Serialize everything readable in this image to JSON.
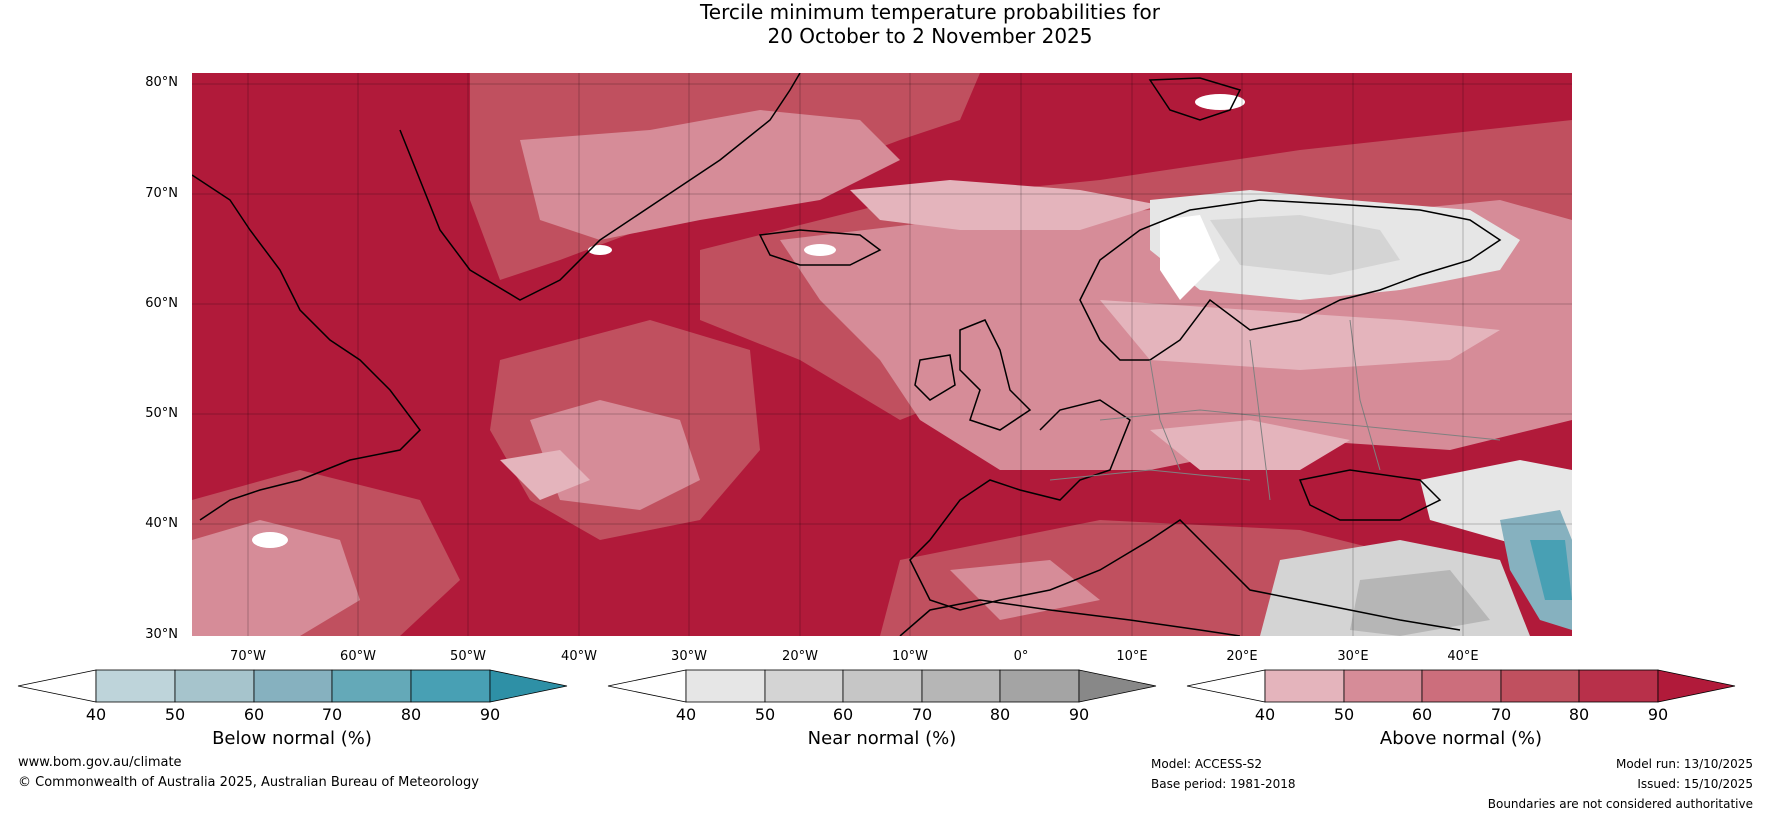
{
  "title": {
    "line1": "Tercile minimum temperature probabilities for",
    "line2": "20 October to 2 November 2025"
  },
  "axes": {
    "lat_labels": [
      "80°N",
      "70°N",
      "60°N",
      "50°N",
      "40°N",
      "30°N"
    ],
    "lon_labels": [
      "70°W",
      "60°W",
      "50°W",
      "40°W",
      "30°W",
      "20°W",
      "10°W",
      "0°",
      "10°E",
      "20°E",
      "30°E",
      "40°E"
    ]
  },
  "colorbars": [
    {
      "name": "Below normal (%)",
      "ticks": [
        "40",
        "50",
        "60",
        "70",
        "80",
        "90"
      ],
      "colors": [
        "#ffffff",
        "#bed4da",
        "#a6c4cc",
        "#86b1bf",
        "#64a9b8",
        "#48a0b4",
        "#2e90a6"
      ]
    },
    {
      "name": "Near normal (%)",
      "ticks": [
        "40",
        "50",
        "60",
        "70",
        "80",
        "90"
      ],
      "colors": [
        "#ffffff",
        "#e6e6e6",
        "#d4d4d4",
        "#c6c6c6",
        "#b6b6b6",
        "#a4a4a4",
        "#888888"
      ]
    },
    {
      "name": "Above normal (%)",
      "ticks": [
        "40",
        "50",
        "60",
        "70",
        "80",
        "90"
      ],
      "colors": [
        "#ffffff",
        "#e4b4bc",
        "#d68c98",
        "#cc6e7c",
        "#c0505f",
        "#b8304a",
        "#b11a3a"
      ]
    }
  ],
  "footer": {
    "website": "www.bom.gov.au/climate",
    "copyright": "© Commonwealth of Australia 2025, Australian Bureau of Meteorology",
    "model": "Model: ACCESS-S2",
    "base_period": "Base period: 1981-2018",
    "model_run": "Model run: 13/10/2025",
    "issued": "Issued: 15/10/2025",
    "disclaimer": "Boundaries are not considered authoritative"
  }
}
